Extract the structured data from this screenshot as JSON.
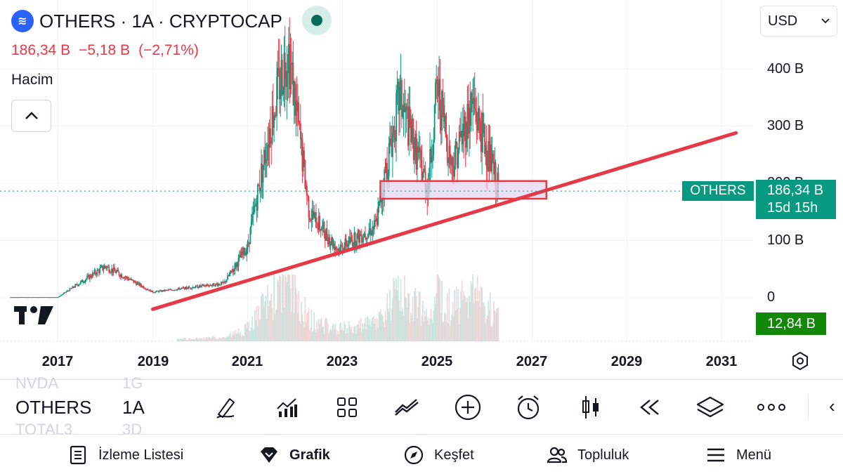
{
  "header": {
    "logo_icon": "crypto-cap-icon",
    "title": "OTHERS · 1A · CRYPTOCAP",
    "price": "186,34 B",
    "change": "−5,18 B",
    "change_pct": "(−2,71%)",
    "volume_label": "Hacim",
    "currency": "USD"
  },
  "colors": {
    "up": "#089981",
    "down": "#f23645",
    "trendline": "#e63946",
    "zone_fill": "#e6d5f0",
    "zone_stroke": "#e63946",
    "accent": "#089981",
    "volume_badge": "#138808"
  },
  "axis": {
    "y_labels": [
      "400 B",
      "300 B",
      "200 B",
      "100 B",
      "0"
    ],
    "x_labels": [
      "2017",
      "2019",
      "2021",
      "2023",
      "2025",
      "2027",
      "2029",
      "2031"
    ]
  },
  "badges": {
    "symbol": "OTHERS",
    "price": "186,34 B",
    "countdown": "15d 15h",
    "volume": "12,84 B"
  },
  "chart_data": {
    "type": "candlestick",
    "unit": "B USD",
    "ylim": [
      0,
      470
    ],
    "x_range": [
      2016.0,
      2031.6
    ],
    "last_price": 186.34,
    "last_volume": 12.84,
    "key_closes": [
      {
        "x": 2017.0,
        "y": 1
      },
      {
        "x": 2018.0,
        "y": 55
      },
      {
        "x": 2019.0,
        "y": 10
      },
      {
        "x": 2020.5,
        "y": 25
      },
      {
        "x": 2021.0,
        "y": 90
      },
      {
        "x": 2021.5,
        "y": 310
      },
      {
        "x": 2021.85,
        "y": 440
      },
      {
        "x": 2022.3,
        "y": 150
      },
      {
        "x": 2022.9,
        "y": 85
      },
      {
        "x": 2023.7,
        "y": 125
      },
      {
        "x": 2024.2,
        "y": 350
      },
      {
        "x": 2024.8,
        "y": 190
      },
      {
        "x": 2025.0,
        "y": 370
      },
      {
        "x": 2025.3,
        "y": 230
      },
      {
        "x": 2025.75,
        "y": 340
      },
      {
        "x": 2026.3,
        "y": 186
      }
    ],
    "trendline": {
      "from": {
        "x": 2019.0,
        "y": -20
      },
      "to": {
        "x": 2031.3,
        "y": 288
      }
    },
    "zone": {
      "x_from": 2023.8,
      "x_to": 2027.3,
      "y_from": 173,
      "y_to": 204
    },
    "grid": true,
    "legend": "none"
  },
  "toolbar": {
    "symbol": "OTHERS",
    "interval": "1A",
    "ghost_symbols": [
      "NVDA",
      "TOTAL3"
    ],
    "ghost_intervals": [
      "1G",
      "3D"
    ]
  },
  "nav": {
    "watchlist": "İzleme Listesi",
    "chart": "Grafik",
    "explore": "Keşfet",
    "community": "Topluluk",
    "menu": "Menü"
  }
}
